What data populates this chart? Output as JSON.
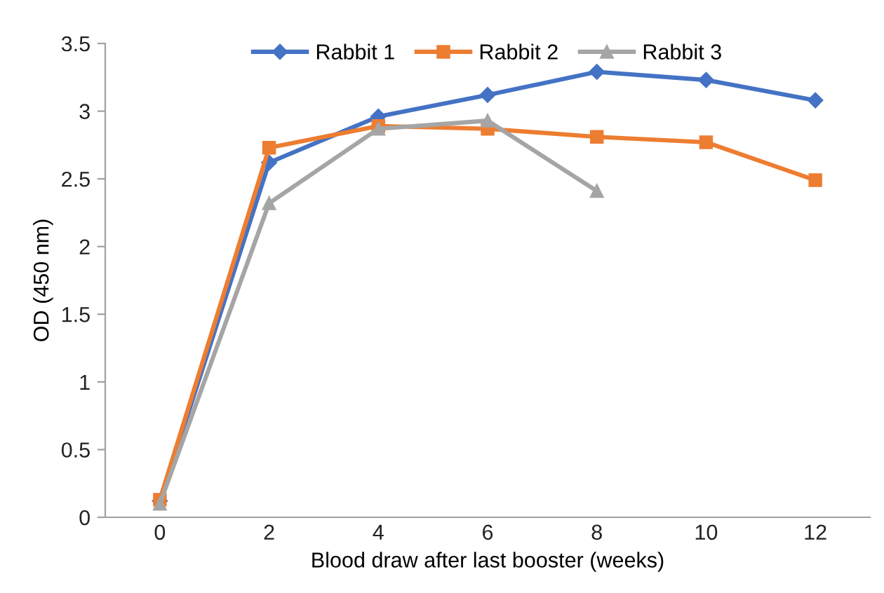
{
  "chart_data": {
    "type": "line",
    "xlabel": "Blood draw after last booster (weeks)",
    "ylabel": "OD (450 nm)",
    "categories": [
      "0",
      "2",
      "4",
      "6",
      "8",
      "10",
      "12"
    ],
    "series": [
      {
        "name": "Rabbit 1",
        "color": "#4472c4",
        "marker": "diamond",
        "values": [
          0.12,
          2.62,
          2.96,
          3.12,
          3.29,
          3.23,
          3.08
        ]
      },
      {
        "name": "Rabbit 2",
        "color": "#ed7d31",
        "marker": "square",
        "values": [
          0.13,
          2.73,
          2.89,
          2.87,
          2.81,
          2.77,
          2.49
        ]
      },
      {
        "name": "Rabbit 3",
        "color": "#a5a5a5",
        "marker": "triangle",
        "values": [
          0.1,
          2.32,
          2.87,
          2.93,
          2.41,
          null,
          null
        ]
      }
    ],
    "ylim": [
      0,
      3.5
    ],
    "yticks": [
      0,
      0.5,
      1,
      1.5,
      2,
      2.5,
      3,
      3.5
    ],
    "grid": false,
    "legend": "top"
  }
}
